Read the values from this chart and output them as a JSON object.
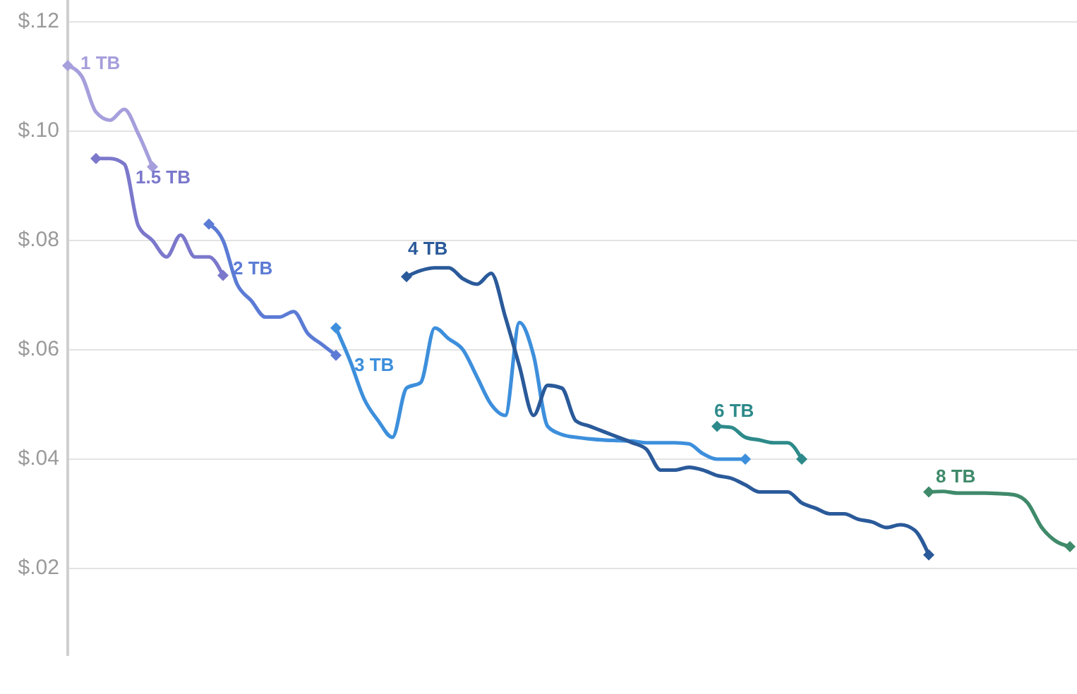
{
  "chart_data": {
    "type": "line",
    "categories": [
      null,
      null,
      null,
      null,
      null,
      null,
      null,
      null,
      null,
      null,
      null,
      null,
      null,
      null,
      null,
      null,
      null,
      null,
      null,
      null,
      null,
      null,
      null,
      null,
      null,
      null,
      null,
      null,
      null,
      null,
      null,
      null,
      null,
      null,
      null,
      null,
      null,
      null,
      null,
      null,
      null,
      null,
      null,
      null,
      null,
      null,
      null,
      null,
      null,
      null,
      null,
      null,
      null,
      null,
      null,
      null,
      null,
      null,
      null,
      null,
      null,
      null,
      null,
      null,
      null,
      null,
      null,
      null,
      null,
      null,
      null,
      null
    ],
    "series": [
      {
        "name": "1 TB",
        "color": "#a59fdc",
        "values": [
          0.112,
          0.11,
          0.1035,
          0.102,
          0.104,
          0.0995,
          0.0935,
          null,
          null,
          null,
          null,
          null,
          null,
          null,
          null,
          null,
          null,
          null,
          null,
          null,
          null,
          null,
          null,
          null,
          null,
          null,
          null,
          null,
          null,
          null,
          null,
          null,
          null,
          null,
          null,
          null,
          null,
          null,
          null,
          null,
          null,
          null,
          null,
          null,
          null,
          null,
          null,
          null,
          null,
          null,
          null,
          null,
          null,
          null,
          null,
          null,
          null,
          null,
          null,
          null,
          null,
          null,
          null,
          null,
          null,
          null,
          null,
          null,
          null,
          null,
          null,
          null
        ]
      },
      {
        "name": "1.5 TB",
        "color": "#7b78cc",
        "values": [
          null,
          null,
          0.095,
          0.095,
          0.094,
          0.0827,
          0.08,
          0.077,
          0.081,
          0.077,
          0.077,
          0.0736,
          null,
          null,
          null,
          null,
          null,
          null,
          null,
          null,
          null,
          null,
          null,
          null,
          null,
          null,
          null,
          null,
          null,
          null,
          null,
          null,
          null,
          null,
          null,
          null,
          null,
          null,
          null,
          null,
          null,
          null,
          null,
          null,
          null,
          null,
          null,
          null,
          null,
          null,
          null,
          null,
          null,
          null,
          null,
          null,
          null,
          null,
          null,
          null,
          null,
          null,
          null,
          null,
          null,
          null,
          null,
          null,
          null,
          null,
          null,
          null
        ]
      },
      {
        "name": "2 TB",
        "color": "#5b7bd5",
        "values": [
          null,
          null,
          null,
          null,
          null,
          null,
          null,
          null,
          null,
          null,
          0.083,
          0.08,
          0.072,
          0.069,
          0.066,
          0.066,
          0.067,
          0.063,
          0.061,
          0.059,
          null,
          null,
          null,
          null,
          null,
          null,
          null,
          null,
          null,
          null,
          null,
          null,
          null,
          null,
          null,
          null,
          null,
          null,
          null,
          null,
          null,
          null,
          null,
          null,
          null,
          null,
          null,
          null,
          null,
          null,
          null,
          null,
          null,
          null,
          null,
          null,
          null,
          null,
          null,
          null,
          null,
          null,
          null,
          null,
          null,
          null,
          null,
          null,
          null,
          null,
          null,
          null
        ]
      },
      {
        "name": "3 TB",
        "color": "#3d8fdc",
        "values": [
          null,
          null,
          null,
          null,
          null,
          null,
          null,
          null,
          null,
          null,
          null,
          null,
          null,
          null,
          null,
          null,
          null,
          null,
          null,
          0.064,
          0.058,
          0.051,
          0.047,
          0.044,
          0.053,
          0.054,
          0.064,
          0.062,
          0.06,
          0.055,
          0.05,
          0.048,
          0.065,
          0.059,
          0.046,
          0.0445,
          0.044,
          0.0437,
          0.0435,
          0.0434,
          0.0433,
          0.043,
          0.043,
          0.043,
          0.0428,
          0.041,
          0.04,
          0.04,
          0.04,
          null,
          null,
          null,
          null,
          null,
          null,
          null,
          null,
          null,
          null,
          null,
          null,
          null,
          null,
          null,
          null,
          null,
          null,
          null,
          null,
          null,
          null,
          null
        ]
      },
      {
        "name": "4 TB",
        "color": "#2a5a9a",
        "values": [
          null,
          null,
          null,
          null,
          null,
          null,
          null,
          null,
          null,
          null,
          null,
          null,
          null,
          null,
          null,
          null,
          null,
          null,
          null,
          null,
          null,
          null,
          null,
          null,
          0.0734,
          0.0745,
          0.075,
          0.075,
          0.073,
          0.072,
          0.074,
          0.066,
          0.057,
          0.048,
          0.0535,
          0.053,
          0.047,
          0.046,
          0.045,
          0.044,
          0.043,
          0.0418,
          0.038,
          0.038,
          0.0385,
          0.038,
          0.037,
          0.0365,
          0.0353,
          0.034,
          0.034,
          0.034,
          0.032,
          0.031,
          0.03,
          0.03,
          0.029,
          0.0285,
          0.0275,
          0.028,
          0.027,
          0.0225,
          null,
          null,
          null,
          null,
          null,
          null,
          null,
          null,
          null,
          null
        ]
      },
      {
        "name": "6 TB",
        "color": "#2e8a8a",
        "values": [
          null,
          null,
          null,
          null,
          null,
          null,
          null,
          null,
          null,
          null,
          null,
          null,
          null,
          null,
          null,
          null,
          null,
          null,
          null,
          null,
          null,
          null,
          null,
          null,
          null,
          null,
          null,
          null,
          null,
          null,
          null,
          null,
          null,
          null,
          null,
          null,
          null,
          null,
          null,
          null,
          null,
          null,
          null,
          null,
          null,
          null,
          0.046,
          0.0458,
          0.044,
          0.0435,
          0.043,
          0.043,
          0.04,
          null,
          null,
          null,
          null,
          null,
          null,
          null,
          null,
          null,
          null,
          null,
          null,
          null,
          null,
          null,
          null,
          null,
          null,
          null
        ]
      },
      {
        "name": "8 TB",
        "color": "#3f8a6a",
        "values": [
          null,
          null,
          null,
          null,
          null,
          null,
          null,
          null,
          null,
          null,
          null,
          null,
          null,
          null,
          null,
          null,
          null,
          null,
          null,
          null,
          null,
          null,
          null,
          null,
          null,
          null,
          null,
          null,
          null,
          null,
          null,
          null,
          null,
          null,
          null,
          null,
          null,
          null,
          null,
          null,
          null,
          null,
          null,
          null,
          null,
          null,
          null,
          null,
          null,
          null,
          null,
          null,
          null,
          null,
          null,
          null,
          null,
          null,
          null,
          null,
          null,
          0.034,
          0.0341,
          0.0338,
          0.0338,
          0.0338,
          0.0337,
          0.0335,
          0.032,
          0.0275,
          0.025,
          0.024
        ]
      }
    ],
    "ylim": [
      0.004,
      0.124
    ],
    "yticks": [
      {
        "value": 0.02,
        "label": "$.02"
      },
      {
        "value": 0.04,
        "label": "$.04"
      },
      {
        "value": 0.06,
        "label": "$.06"
      },
      {
        "value": 0.08,
        "label": "$.08"
      },
      {
        "value": 0.1,
        "label": "$.10"
      },
      {
        "value": 0.12,
        "label": "$.12"
      }
    ],
    "grid": "y",
    "tick_labels": "y",
    "line_style": "solid"
  }
}
